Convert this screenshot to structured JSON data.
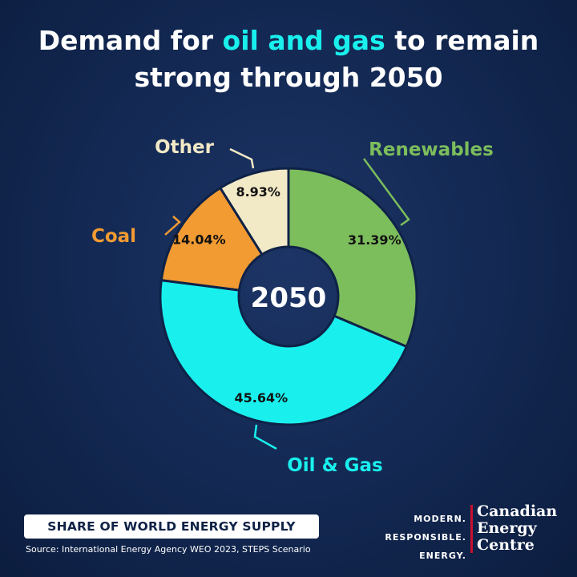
{
  "header": {
    "title_part1": "Demand for ",
    "title_highlight": "oil and gas",
    "title_part2": " to remain",
    "title_line2": "strong through 2050"
  },
  "chart_data": {
    "type": "pie",
    "center_label": "2050",
    "categories": [
      "Renewables",
      "Oil & Gas",
      "Coal",
      "Other"
    ],
    "values": [
      31.39,
      45.64,
      14.04,
      8.93
    ],
    "value_labels": [
      "31.39%",
      "45.64%",
      "14.04%",
      "8.93%"
    ],
    "colors": [
      "#7cbd5c",
      "#19f0ee",
      "#f29b32",
      "#f2e9c6"
    ],
    "label_colors": [
      "#7cbd5c",
      "#19f0ee",
      "#f29b32",
      "#f2e9c6"
    ]
  },
  "footer": {
    "badge": "SHARE OF WORLD ENERGY SUPPLY",
    "source": "Source: International Energy Agency WEO 2023, STEPS Scenario",
    "logo_tagline": [
      "MODERN.",
      "RESPONSIBLE.",
      "ENERGY."
    ],
    "logo_name": [
      "Canadian",
      "Energy",
      "Centre"
    ]
  }
}
